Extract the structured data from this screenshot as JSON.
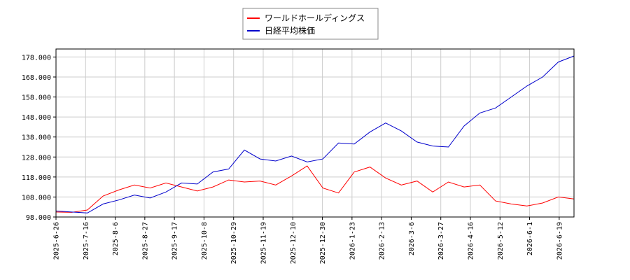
{
  "chart_data": {
    "type": "line",
    "title": "",
    "xlabel": "",
    "ylabel": "",
    "legend_position": "top-center",
    "grid": true,
    "ylim": [
      98,
      182
    ],
    "yticks": [
      "98.000",
      "108.000",
      "118.000",
      "128.000",
      "138.000",
      "148.000",
      "158.000",
      "168.000",
      "178.000"
    ],
    "ytick_values": [
      98,
      108,
      118,
      128,
      138,
      148,
      158,
      168,
      178
    ],
    "xticks": [
      "2025-6-26",
      "2025-7-16",
      "2025-8-6",
      "2025-8-27",
      "2025-9-17",
      "2025-10-8",
      "2025-10-29",
      "2025-11-19",
      "2025-12-10",
      "2025-12-30",
      "2026-1-23",
      "2026-2-13",
      "2026-3-6",
      "2026-3-27",
      "2026-4-16",
      "2026-5-12",
      "2026-6-1",
      "2026-6-19"
    ],
    "x_count": 18,
    "series": [
      {
        "name": "ワールドホールディングス",
        "color": "#ff0000",
        "values": [
          100.5,
          100.3,
          101.5,
          108.5,
          111.5,
          114.0,
          112.5,
          115.0,
          113.0,
          111.0,
          113.0,
          116.5,
          115.5,
          116.0,
          114.0,
          118.5,
          123.5,
          112.5,
          110.0,
          120.5,
          123.0,
          117.5,
          114.0,
          116.0,
          110.5,
          115.5,
          113.0,
          114.0,
          106.0,
          104.5,
          103.5,
          105.0,
          108.0,
          107.0
        ]
      },
      {
        "name": "日経平均株価",
        "color": "#0000cc",
        "values": [
          101.0,
          100.5,
          100.0,
          104.5,
          106.5,
          109.0,
          107.5,
          110.5,
          115.0,
          114.5,
          120.5,
          122.0,
          131.5,
          127.0,
          126.0,
          128.5,
          125.5,
          127.0,
          135.0,
          134.5,
          140.5,
          145.0,
          141.0,
          135.5,
          133.5,
          133.0,
          143.5,
          150.0,
          152.5,
          158.0,
          163.5,
          168.0,
          175.5,
          178.5
        ]
      }
    ]
  }
}
